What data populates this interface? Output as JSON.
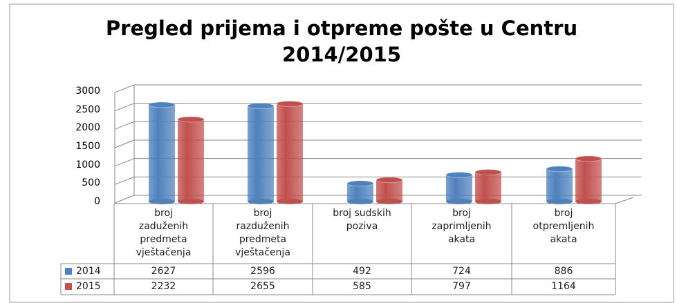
{
  "chart_data": {
    "type": "bar",
    "title": "Pregled prijema i otpreme pošte u Centru\n2014/2015",
    "categories": [
      "broj\nzaduženih\npredmeta\nvještačenja",
      "broj\nrazduženih\npredmeta\nvještačenja",
      "broj sudskih\npoziva",
      "broj\nzaprimljenih\nakata",
      "broj\notpremljenih\nakata"
    ],
    "series": [
      {
        "name": "2014",
        "color": "#4f81bd",
        "values": [
          2627,
          2596,
          492,
          724,
          886
        ]
      },
      {
        "name": "2015",
        "color": "#c0504d",
        "values": [
          2232,
          2655,
          585,
          797,
          1164
        ]
      }
    ],
    "ylim": [
      0,
      3000
    ],
    "yticks": [
      0,
      500,
      1000,
      1500,
      2000,
      2500,
      3000
    ],
    "grid": true
  }
}
